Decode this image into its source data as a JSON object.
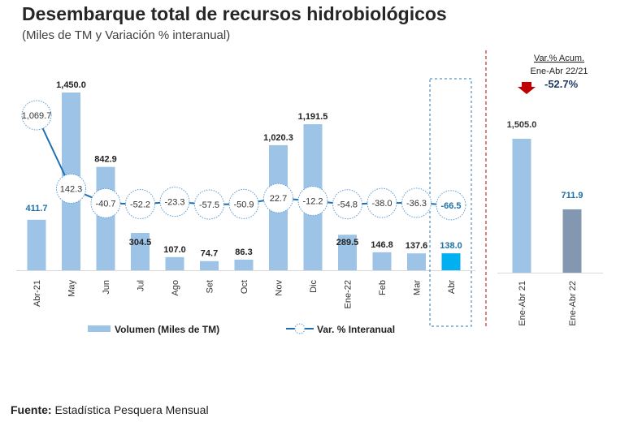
{
  "title": "Desembarque total de recursos hidrobiológicos",
  "subtitle": "(Miles de TM y Variación % interanual)",
  "source": {
    "label": "Fuente:",
    "text": "Estadística Pesquera Mensual"
  },
  "colors": {
    "bar": "#9dc3e6",
    "bar_highlight": "#00b0f0",
    "line": "#1f6fb0",
    "bar_2022": "#8497b0",
    "arrow": "#c00000",
    "blue_label": "#1f6fa8"
  },
  "chart_data": [
    {
      "type": "bar+line",
      "categories": [
        "Abr-21",
        "May",
        "Jun",
        "Jul",
        "Ago",
        "Set",
        "Oct",
        "Nov",
        "Dic",
        "Ene-22",
        "Feb",
        "Mar",
        "Abr"
      ],
      "series": [
        {
          "name": "Volumen (Miles de TM)",
          "type": "bar",
          "values": [
            411.7,
            1450.0,
            842.9,
            304.5,
            107.0,
            74.7,
            86.3,
            1020.3,
            1191.5,
            289.5,
            146.8,
            137.6,
            138.0
          ],
          "labels": [
            "411.7",
            "1,450.0",
            "842.9",
            "304.5",
            "107.0",
            "74.7",
            "86.3",
            "1,020.3",
            "1,191.5",
            "289.5",
            "146.8",
            "137.6",
            "138.0"
          ]
        },
        {
          "name": "Var. % Interanual",
          "type": "line",
          "values": [
            1069.7,
            142.3,
            -40.7,
            -52.2,
            -23.3,
            -57.5,
            -50.9,
            22.7,
            -12.2,
            -54.8,
            -38.0,
            -36.3,
            -66.5
          ],
          "labels": [
            "1,069.7",
            "142.3",
            "-40.7",
            "-52.2",
            "-23.3",
            "-57.5",
            "-50.9",
            "22.7",
            "-12.2",
            "-54.8",
            "-38.0",
            "-36.3",
            "-66.5"
          ]
        }
      ],
      "highlight_category": "Abr",
      "legend_position": "bottom"
    },
    {
      "type": "bar",
      "categories": [
        "Ene-Abr 21",
        "Ene-Abr 22"
      ],
      "values": [
        1505.0,
        711.9
      ],
      "labels": [
        "1,505.0",
        "711.9"
      ],
      "annotation": {
        "title": "Var.% Acum.",
        "period": "Ene-Abr 22/21",
        "value": "-52.7%"
      }
    }
  ]
}
